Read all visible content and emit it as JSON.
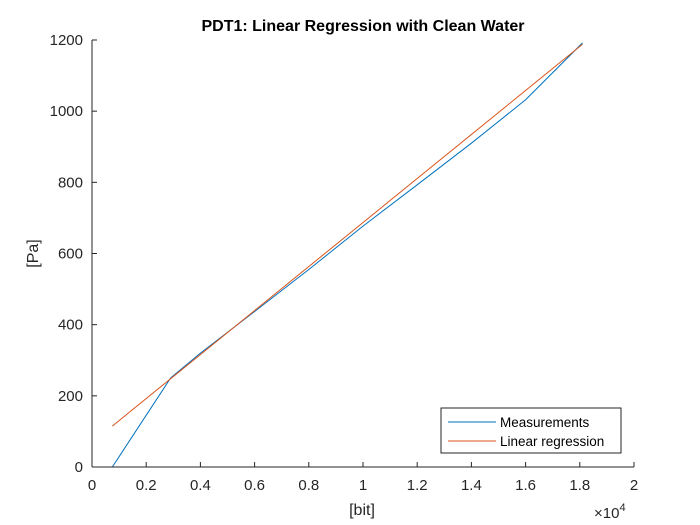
{
  "chart_data": {
    "type": "line",
    "title": "PDT1: Linear Regression with Clean Water",
    "xlabel": "[bit]",
    "ylabel": "[Pa]",
    "x_exponent_label": "×10",
    "x_exponent_power": "4",
    "x_multiplier": 10000,
    "xlim": [
      0,
      20000
    ],
    "ylim": [
      0,
      1200
    ],
    "x_ticks": [
      0,
      2000,
      4000,
      6000,
      8000,
      10000,
      12000,
      14000,
      16000,
      18000,
      20000
    ],
    "x_tick_labels": [
      "0",
      "0.2",
      "0.4",
      "0.6",
      "0.8",
      "1",
      "1.2",
      "1.4",
      "1.6",
      "1.8",
      "2"
    ],
    "y_ticks": [
      0,
      200,
      400,
      600,
      800,
      1000,
      1200
    ],
    "y_tick_labels": [
      "0",
      "200",
      "400",
      "600",
      "800",
      "1000",
      "1200"
    ],
    "grid": false,
    "legend_position": "bottom-right",
    "series": [
      {
        "name": "Measurements",
        "color": "#0072BD",
        "x": [
          750,
          2900,
          4000,
          6000,
          8000,
          10000,
          12000,
          14000,
          16000,
          18100
        ],
        "y": [
          0,
          250,
          320,
          437,
          555,
          677,
          793,
          910,
          1032,
          1192
        ]
      },
      {
        "name": "Linear regression",
        "color": "#D95319",
        "x": [
          750,
          18100
        ],
        "y": [
          115,
          1188
        ]
      }
    ]
  }
}
